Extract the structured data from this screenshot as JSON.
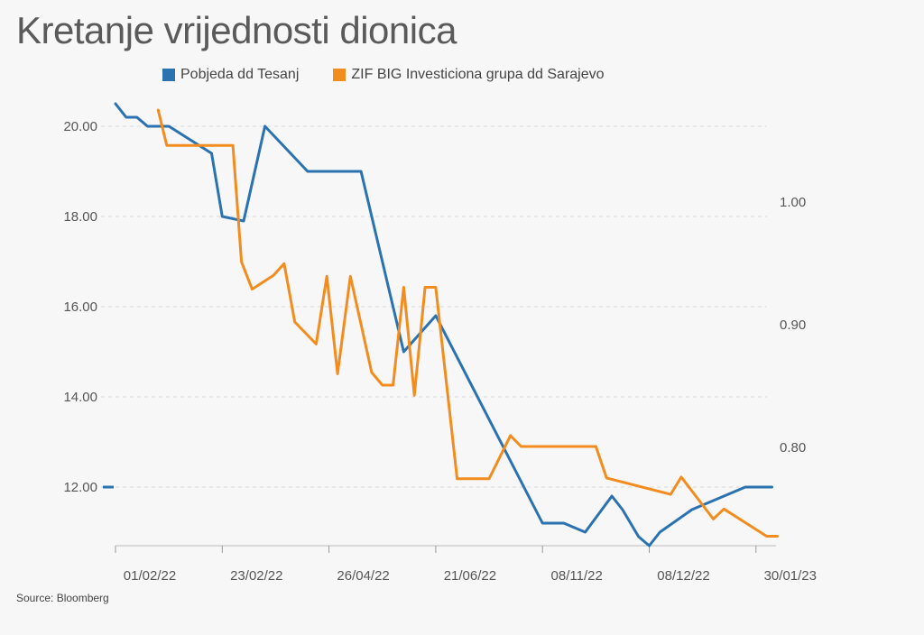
{
  "title": "Kretanje vrijednosti dionica",
  "source": "Source: Bloomberg",
  "chart_data": {
    "type": "line",
    "title": "Kretanje vrijednosti dionica",
    "x_ticks": [
      "01/02/22",
      "23/02/22",
      "26/04/22",
      "21/06/22",
      "08/11/22",
      "08/12/22",
      "30/01/23"
    ],
    "y_left": {
      "ticks": [
        "20.00",
        "18.00",
        "16.00",
        "14.00",
        "12.00"
      ],
      "tick_values": [
        20,
        18,
        16,
        14,
        12
      ],
      "range": [
        10.7,
        20.5
      ]
    },
    "y_right": {
      "ticks": [
        "1.00",
        "0.90",
        "0.80"
      ],
      "tick_values": [
        1.0,
        0.9,
        0.8
      ],
      "range": [
        0.727,
        1.082
      ]
    },
    "grid": "horizontal dashed",
    "legend_position": "top",
    "series": [
      {
        "name": "Pobjeda dd Tesanj",
        "color": "#2a72b0",
        "axis": "left",
        "points": [
          [
            0.0,
            20.5
          ],
          [
            0.1,
            20.2
          ],
          [
            0.2,
            20.2
          ],
          [
            0.3,
            20.0
          ],
          [
            0.5,
            20.0
          ],
          [
            0.9,
            19.4
          ],
          [
            1.0,
            18.0
          ],
          [
            1.2,
            17.9
          ],
          [
            1.4,
            20.0
          ],
          [
            1.8,
            19.0
          ],
          [
            2.3,
            19.0
          ],
          [
            2.7,
            15.0
          ],
          [
            3.0,
            15.8
          ],
          [
            4.0,
            11.2
          ],
          [
            4.2,
            11.2
          ],
          [
            4.4,
            11.0
          ],
          [
            4.65,
            11.8
          ],
          [
            4.75,
            11.5
          ],
          [
            4.9,
            10.9
          ],
          [
            5.0,
            10.7
          ],
          [
            5.1,
            11.0
          ],
          [
            5.4,
            11.5
          ],
          [
            5.7,
            11.8
          ],
          [
            5.9,
            12.0
          ],
          [
            6.15,
            12.0
          ]
        ]
      },
      {
        "name": "ZIF BIG Investiciona grupa dd Sarajevo",
        "color": "#f28c1e",
        "axis": "right",
        "points": [
          [
            0.4,
            1.075
          ],
          [
            0.48,
            1.0462
          ],
          [
            1.1,
            1.0462
          ],
          [
            1.18,
            0.9513
          ],
          [
            1.28,
            0.929
          ],
          [
            1.48,
            0.9402
          ],
          [
            1.58,
            0.9498
          ],
          [
            1.68,
            0.9022
          ],
          [
            1.88,
            0.8843
          ],
          [
            1.98,
            0.9395
          ],
          [
            2.08,
            0.86
          ],
          [
            2.2,
            0.9395
          ],
          [
            2.4,
            0.8611
          ],
          [
            2.5,
            0.8507
          ],
          [
            2.6,
            0.8507
          ],
          [
            2.7,
            0.9305
          ],
          [
            2.8,
            0.8425
          ],
          [
            2.9,
            0.9305
          ],
          [
            3.0,
            0.9305
          ],
          [
            3.2,
            0.7744
          ],
          [
            3.5,
            0.7744
          ],
          [
            3.7,
            0.8096
          ],
          [
            3.8,
            0.8007
          ],
          [
            4.5,
            0.8007
          ],
          [
            4.6,
            0.7751
          ],
          [
            5.2,
            0.7617
          ],
          [
            5.3,
            0.7758
          ],
          [
            5.6,
            0.7416
          ],
          [
            5.7,
            0.7498
          ],
          [
            6.1,
            0.7276
          ],
          [
            6.2,
            0.7276
          ]
        ]
      }
    ]
  }
}
